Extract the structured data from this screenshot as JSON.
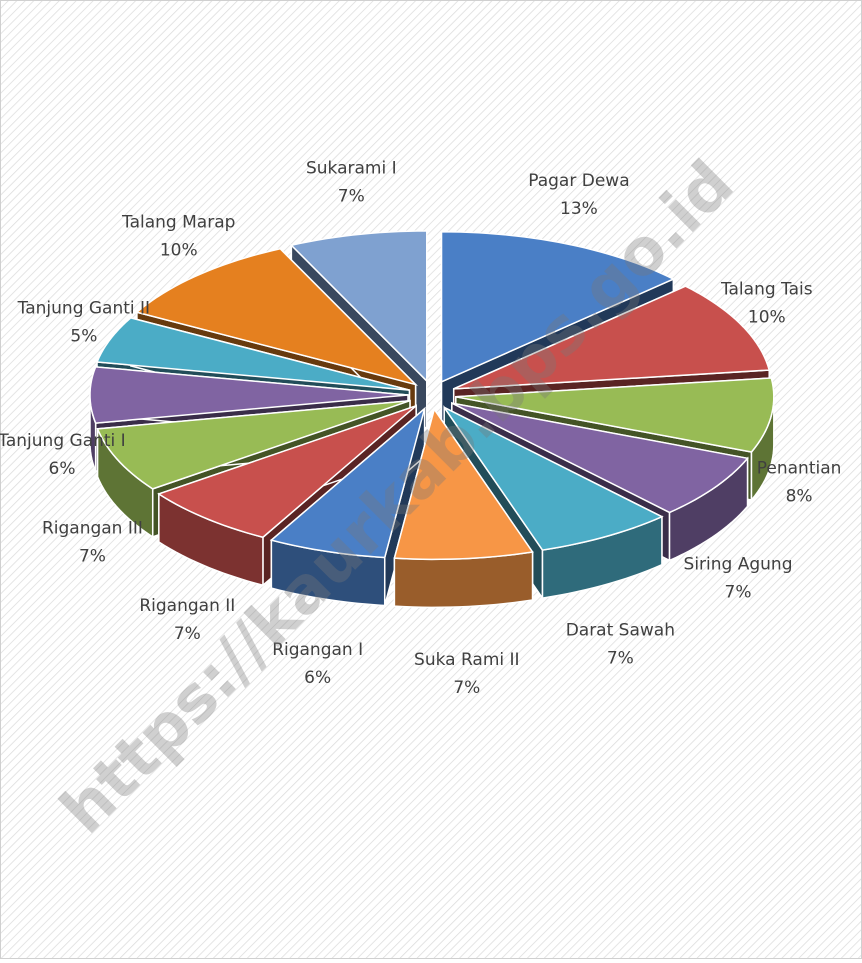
{
  "chart_data": {
    "type": "pie3d",
    "watermark": "https://kaurkab.bps.go.id",
    "categories": [
      "Pagar Dewa",
      "Talang Tais",
      "Penantian",
      "Siring Agung",
      "Darat Sawah",
      "Suka Rami II",
      "Rigangan I",
      "Rigangan II",
      "Rigangan III",
      "Tanjung Ganti I",
      "Tanjung Ganti II",
      "Talang Marap",
      "Sukarami I"
    ],
    "values": [
      13,
      10,
      8,
      7,
      7,
      7,
      6,
      7,
      7,
      6,
      5,
      10,
      7
    ],
    "value_labels": [
      "13%",
      "10%",
      "8%",
      "7%",
      "7%",
      "7%",
      "6%",
      "7%",
      "7%",
      "6%",
      "5%",
      "10%",
      "7%"
    ],
    "colors": [
      "#4a7fc6",
      "#c8504d",
      "#98bb55",
      "#8064a2",
      "#4bacc6",
      "#f79646",
      "#4a7fc6",
      "#c8504d",
      "#98bb55",
      "#8064a2",
      "#4bacc6",
      "#e5801f",
      "#7fa1d0"
    ]
  }
}
